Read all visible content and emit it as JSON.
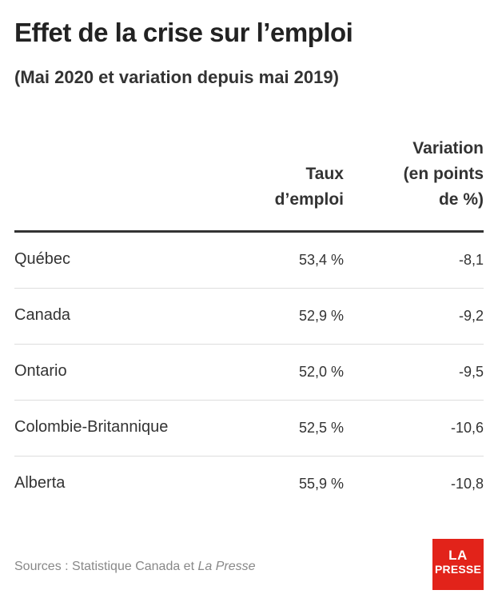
{
  "title": "Effet de la crise sur l’emploi",
  "subtitle": "(Mai 2020 et variation depuis mai 2019)",
  "chart_data": {
    "type": "table",
    "columns": [
      "",
      "Taux\nd’emploi",
      "Variation\n(en points\nde %)"
    ],
    "rows": [
      {
        "name": "Québec",
        "rate_label": "53,4 %",
        "var_label": "-8,1",
        "rate": 53.4,
        "variation": -8.1
      },
      {
        "name": "Canada",
        "rate_label": "52,9 %",
        "var_label": "-9,2",
        "rate": 52.9,
        "variation": -9.2
      },
      {
        "name": "Ontario",
        "rate_label": "52,0 %",
        "var_label": "-9,5",
        "rate": 52.0,
        "variation": -9.5
      },
      {
        "name": "Colombie-Britannique",
        "rate_label": "52,5 %",
        "var_label": "-10,6",
        "rate": 52.5,
        "variation": -10.6
      },
      {
        "name": "Alberta",
        "rate_label": "55,9 %",
        "var_label": "-10,8",
        "rate": 55.9,
        "variation": -10.8
      }
    ]
  },
  "footer": {
    "sources_prefix": "Sources : Statistique Canada et ",
    "sources_italic": "La Presse",
    "logo_line1": "LA",
    "logo_line2": "PRESSE"
  },
  "colors": {
    "text": "#222222",
    "muted": "#888888",
    "rule": "#333333",
    "brand_red": "#e2231a"
  }
}
